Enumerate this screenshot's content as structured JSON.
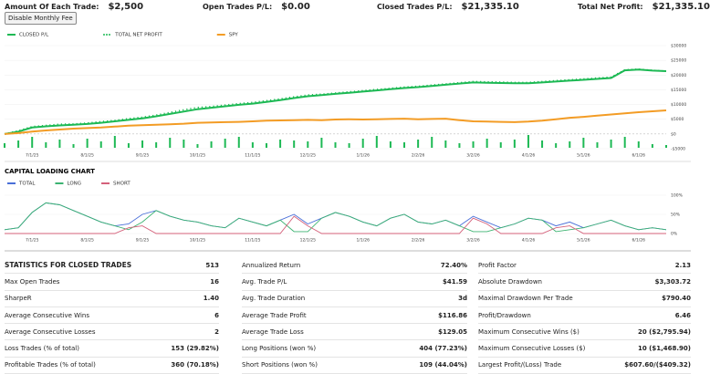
{
  "header": {
    "items": [
      {
        "label": "Amount Of Each Trade:",
        "value": "$2,500"
      },
      {
        "label": "Open Trades P/L:",
        "value": "$0.00"
      },
      {
        "label": "Closed Trades P/L:",
        "value": "$21,335.10"
      },
      {
        "label": "Total Net Profit:",
        "value": "$21,335.10"
      }
    ],
    "button": "Disable Monthly Fee"
  },
  "chart_data": [
    {
      "type": "line",
      "categories": [
        null,
        null,
        "7/1/25",
        null,
        null,
        null,
        "8/1/25",
        null,
        null,
        null,
        "9/1/25",
        null,
        null,
        null,
        "10/1/25",
        null,
        null,
        null,
        "11/1/25",
        null,
        null,
        null,
        "12/1/25",
        null,
        null,
        null,
        "1/1/26",
        null,
        null,
        null,
        "2/2/26",
        null,
        null,
        null,
        "3/2/26",
        null,
        null,
        null,
        "4/1/26",
        null,
        null,
        null,
        "5/1/26",
        null,
        null,
        null,
        "6/1/26",
        null,
        null
      ],
      "series": [
        {
          "name": "CLOSED P/L",
          "color": "#1db954",
          "style": "solid",
          "values": [
            0,
            800,
            2200,
            2600,
            2900,
            3100,
            3400,
            3800,
            4300,
            4800,
            5300,
            6000,
            6800,
            7600,
            8400,
            8900,
            9400,
            9900,
            10300,
            10900,
            11500,
            12200,
            12800,
            13200,
            13600,
            14000,
            14400,
            14800,
            15200,
            15600,
            15900,
            16300,
            16700,
            17100,
            17500,
            17400,
            17300,
            17200,
            17200,
            17500,
            17800,
            18100,
            18400,
            18700,
            19000,
            21600,
            21900,
            21500,
            21335.1
          ]
        },
        {
          "name": "TOTAL NET PROFIT",
          "color": "#1db954",
          "style": "dotted",
          "values": [
            0,
            1100,
            2500,
            2900,
            3300,
            3400,
            3700,
            4200,
            4600,
            5200,
            5700,
            6400,
            7300,
            8200,
            9000,
            9300,
            9800,
            10300,
            10700,
            11300,
            11900,
            12600,
            13200,
            13500,
            13900,
            14300,
            14700,
            15100,
            15500,
            15900,
            16200,
            16600,
            17000,
            17400,
            17800,
            17700,
            17600,
            17500,
            17500,
            17800,
            18100,
            18400,
            18700,
            19000,
            19300,
            21800,
            22000,
            21600,
            21335.1
          ]
        },
        {
          "name": "SPY",
          "color": "#f39c25",
          "style": "solid",
          "values": [
            0,
            300,
            800,
            1200,
            1500,
            1800,
            2000,
            2200,
            2500,
            2800,
            3000,
            3100,
            3300,
            3500,
            3800,
            3900,
            4000,
            4100,
            4300,
            4500,
            4600,
            4700,
            4800,
            4700,
            4900,
            5000,
            4900,
            5000,
            5100,
            5200,
            5000,
            5100,
            5200,
            4700,
            4300,
            4200,
            4100,
            4000,
            4200,
            4500,
            5000,
            5500,
            5800,
            6200,
            6600,
            7000,
            7400,
            7700,
            8000
          ]
        }
      ],
      "bars": {
        "color": "#1db954",
        "values": [
          5,
          8,
          12,
          6,
          9,
          4,
          10,
          7,
          13,
          5,
          8,
          6,
          11,
          9,
          4,
          7,
          10,
          12,
          6,
          5,
          9,
          8,
          7,
          11,
          6,
          5,
          10,
          13,
          7,
          6,
          9,
          12,
          8,
          5,
          7,
          10,
          6,
          9,
          14,
          8,
          5,
          7,
          11,
          6,
          9,
          12,
          7,
          4,
          3
        ]
      },
      "ylim": [
        -5000,
        30000
      ],
      "yticks": [
        {
          "value": -5000,
          "label": "-$5000"
        },
        {
          "value": 0,
          "label": "$0"
        },
        {
          "value": 5000,
          "label": "$5000"
        },
        {
          "value": 10000,
          "label": "$10000"
        },
        {
          "value": 15000,
          "label": "$15000"
        },
        {
          "value": 20000,
          "label": "$20000"
        },
        {
          "value": 25000,
          "label": "$25000"
        },
        {
          "value": 30000,
          "label": "$30000"
        }
      ],
      "grid": true
    },
    {
      "type": "line",
      "title": "CAPITAL LOADING CHART",
      "categories": [
        null,
        null,
        "7/1/25",
        null,
        null,
        null,
        "8/1/25",
        null,
        null,
        null,
        "9/1/25",
        null,
        null,
        null,
        "10/1/25",
        null,
        null,
        null,
        "11/1/25",
        null,
        null,
        null,
        "12/1/25",
        null,
        null,
        null,
        "1/1/26",
        null,
        null,
        null,
        "2/2/26",
        null,
        null,
        null,
        "3/2/26",
        null,
        null,
        null,
        "4/1/26",
        null,
        null,
        null,
        "5/1/26",
        null,
        null,
        null,
        "6/1/26",
        null,
        null
      ],
      "series": [
        {
          "name": "TOTAL",
          "color": "#4a6fd8",
          "values": [
            10,
            15,
            55,
            80,
            75,
            60,
            45,
            30,
            20,
            25,
            50,
            60,
            45,
            35,
            30,
            20,
            15,
            40,
            30,
            20,
            35,
            50,
            25,
            40,
            55,
            45,
            30,
            20,
            40,
            50,
            30,
            25,
            35,
            20,
            45,
            30,
            15,
            25,
            40,
            35,
            20,
            30,
            15,
            25,
            35,
            20,
            10,
            15,
            10
          ]
        },
        {
          "name": "LONG",
          "color": "#3cb371",
          "values": [
            10,
            15,
            55,
            80,
            75,
            60,
            45,
            30,
            20,
            10,
            30,
            60,
            45,
            35,
            30,
            20,
            15,
            40,
            30,
            20,
            35,
            5,
            5,
            40,
            55,
            45,
            30,
            20,
            40,
            50,
            30,
            25,
            35,
            20,
            5,
            5,
            15,
            25,
            40,
            35,
            5,
            10,
            15,
            25,
            35,
            20,
            10,
            15,
            10
          ]
        },
        {
          "name": "SHORT",
          "color": "#d4607a",
          "values": [
            0,
            0,
            0,
            0,
            0,
            0,
            0,
            0,
            0,
            15,
            20,
            0,
            0,
            0,
            0,
            0,
            0,
            0,
            0,
            0,
            0,
            45,
            20,
            0,
            0,
            0,
            0,
            0,
            0,
            0,
            0,
            0,
            0,
            0,
            40,
            25,
            0,
            0,
            0,
            0,
            15,
            20,
            0,
            0,
            0,
            0,
            0,
            0,
            0
          ]
        }
      ],
      "ylim": [
        0,
        100
      ],
      "yticks": [
        {
          "value": 0,
          "label": "0%"
        },
        {
          "value": 50,
          "label": "50%"
        },
        {
          "value": 100,
          "label": "100%"
        }
      ]
    }
  ],
  "stats": {
    "columns": [
      {
        "rows": [
          [
            "STATISTICS FOR CLOSED TRADES",
            "513"
          ],
          [
            "Max Open Trades",
            "16"
          ],
          [
            "SharpeR",
            "1.40"
          ],
          [
            "Average Consecutive Wins",
            "6"
          ],
          [
            "Average Consecutive Losses",
            "2"
          ],
          [
            "Loss Trades (% of total)",
            "153 (29.82%)"
          ],
          [
            "Profitable Trades (% of total)",
            "360 (70.18%)"
          ]
        ]
      },
      {
        "rows": [
          [
            "Annualized Return",
            "72.40%"
          ],
          [
            "Avg. Trade P/L",
            "$41.59"
          ],
          [
            "Avg. Trade Duration",
            "3d"
          ],
          [
            "Average Trade Profit",
            "$116.86"
          ],
          [
            "Average Trade Loss",
            "$129.05"
          ],
          [
            "Long Positions (won %)",
            "404 (77.23%)"
          ],
          [
            "Short Positions (won %)",
            "109 (44.04%)"
          ]
        ]
      },
      {
        "rows": [
          [
            "Profit Factor",
            "2.13"
          ],
          [
            "Absolute Drawdown",
            "$3,303.72"
          ],
          [
            "Maximal Drawdown Per Trade",
            "$790.40"
          ],
          [
            "Profit/Drawdown",
            "6.46"
          ],
          [
            "Maximum Consecutive Wins ($)",
            "20 ($2,795.94)"
          ],
          [
            "Maximum Consecutive Losses ($)",
            "10 ($1,468.90)"
          ],
          [
            "Largest Profit/(Loss) Trade",
            "$607.60/($409.32)"
          ]
        ]
      }
    ]
  }
}
